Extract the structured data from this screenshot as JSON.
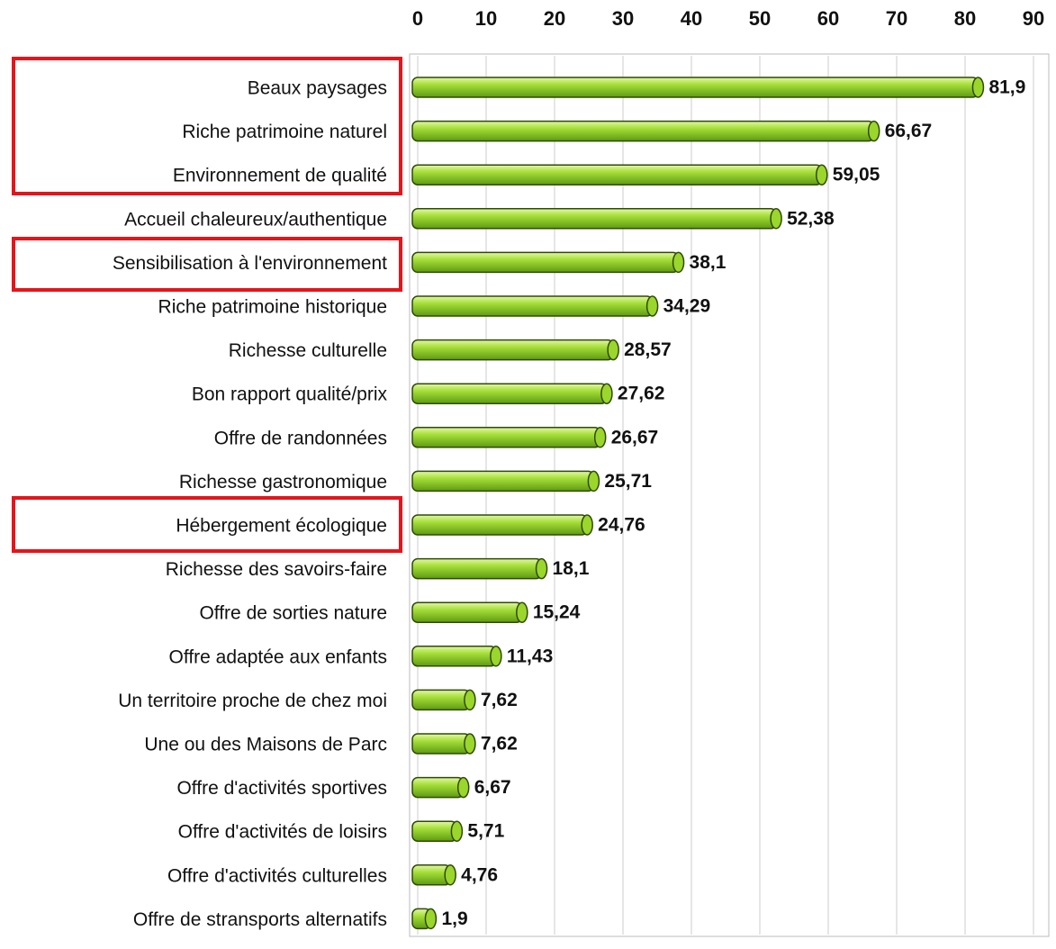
{
  "chart_data": {
    "type": "bar",
    "orientation": "horizontal",
    "categories": [
      "Beaux paysages",
      "Riche patrimoine naturel",
      "Environnement de qualité",
      "Accueil chaleureux/authentique",
      "Sensibilisation à l'environnement",
      "Riche patrimoine historique",
      "Richesse culturelle",
      "Bon rapport qualité/prix",
      "Offre de randonnées",
      "Richesse gastronomique",
      "Hébergement écologique",
      "Richesse des savoirs-faire",
      "Offre de sorties nature",
      "Offre adaptée aux enfants",
      "Un territoire proche de chez moi",
      "Une ou des Maisons de Parc",
      "Offre d'activités sportives",
      "Offre d'activités de loisirs",
      "Offre d'activités culturelles",
      "Offre de stransports alternatifs"
    ],
    "values": [
      81.9,
      66.67,
      59.05,
      52.38,
      38.1,
      34.29,
      28.57,
      27.62,
      26.67,
      25.71,
      24.76,
      18.1,
      15.24,
      11.43,
      7.62,
      7.62,
      6.67,
      5.71,
      4.76,
      1.9
    ],
    "value_labels": [
      "81,9",
      "66,67",
      "59,05",
      "52,38",
      "38,1",
      "34,29",
      "28,57",
      "27,62",
      "26,67",
      "25,71",
      "24,76",
      "18,1",
      "15,24",
      "11,43",
      "7,62",
      "7,62",
      "6,67",
      "5,71",
      "4,76",
      "1,9"
    ],
    "color": "#9ad62c",
    "xlim": [
      0,
      90
    ],
    "xticks": [
      0,
      10,
      20,
      30,
      40,
      50,
      60,
      70,
      80,
      90
    ],
    "grid": true
  }
}
